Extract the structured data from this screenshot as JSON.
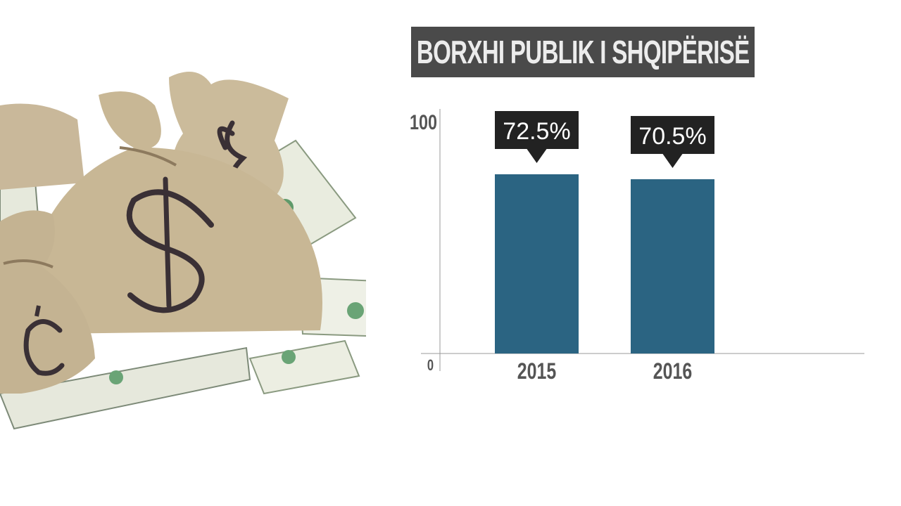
{
  "chart_data": {
    "type": "bar",
    "title": "BORXHI PUBLIK I SHQIPËRISË",
    "categories": [
      "2015",
      "2016"
    ],
    "values": [
      72.5,
      70.5
    ],
    "data_labels": [
      "72.5%",
      "70.5%"
    ],
    "ylim": [
      0,
      100
    ],
    "y_ticks": [
      "0",
      "100"
    ],
    "xlabel": "",
    "ylabel": "",
    "grid": false,
    "colors": {
      "bar": "#2b6482",
      "label_bg": "#222222",
      "label_text": "#ffffff",
      "axis": "#999999",
      "tick_text": "#555555",
      "title_bg": "#4a4a4a"
    }
  }
}
